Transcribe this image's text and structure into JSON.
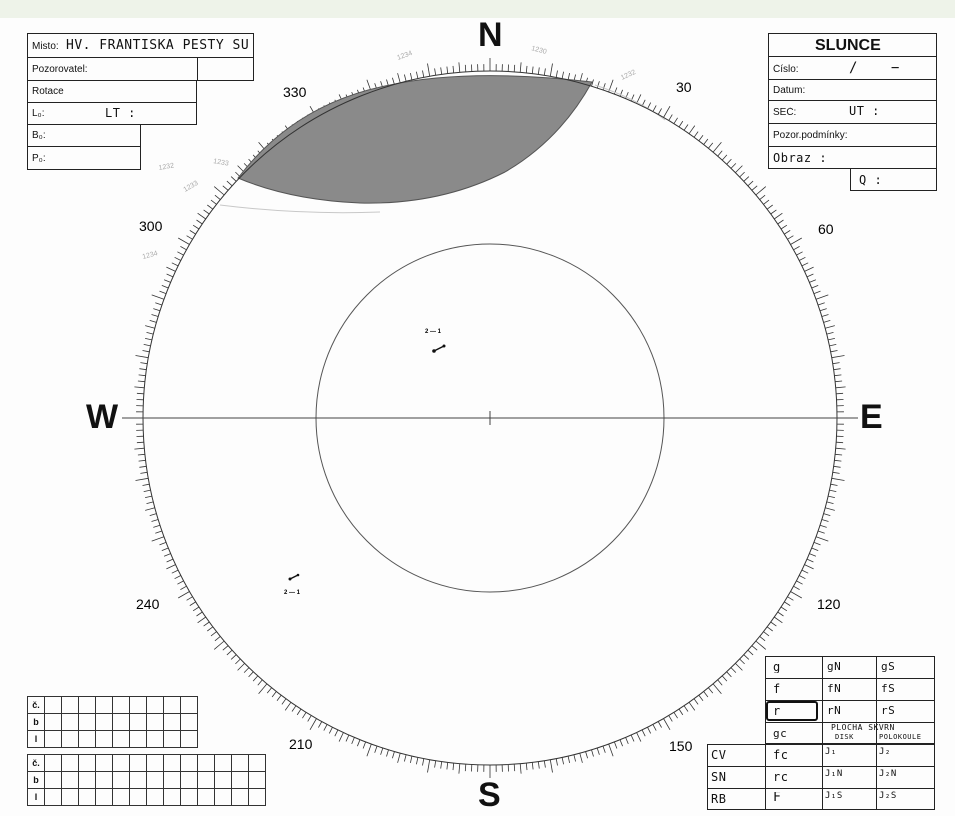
{
  "observation_form": {
    "misto_label": "Misto:",
    "misto_value": "HV. FRANTIŠKA PEŠTY SÚ",
    "pozorovatel_label": "Pozorovatel:",
    "rotace_label": "Rotace",
    "l0_label": "L₀:",
    "lt_label": "LT :",
    "b0_label": "B₀:",
    "p_label": "P₀:"
  },
  "slunce_form": {
    "title": "SLUNCE",
    "cislo_label": "Číslo:",
    "cislo_value": "/",
    "cislo_value2": "−",
    "datum_label": "Datum:",
    "sec_label": "SEČ:",
    "ut_label": "UT :",
    "pozor_label": "Pozor.podmínky:",
    "obraz_label": "Obraz :",
    "q_label": "Q :"
  },
  "dial": {
    "n": "N",
    "s": "S",
    "w": "W",
    "e": "E",
    "labels": [
      "330",
      "30",
      "300",
      "60",
      "240",
      "120",
      "210",
      "150"
    ],
    "group_label_1": "2 — 1",
    "group_label_2": "2 — 1"
  },
  "bottom_right_table": {
    "r1": [
      "g",
      "gN",
      "gS"
    ],
    "r2": [
      "f",
      "fN",
      "fS"
    ],
    "r3": [
      "r",
      "rN",
      "rS"
    ],
    "r4a": "gc",
    "plocha_header": "PLOCHA SKVRN",
    "disk_label": "DISK",
    "polokoule_label": "POLOKOULE",
    "rows": [
      {
        "k": "CV",
        "v": "fc",
        "j": "J₁",
        "j2": "J₂"
      },
      {
        "k": "SN",
        "v": "rc",
        "j": "J₁N",
        "j2": "J₂N"
      },
      {
        "k": "RB",
        "v": "F",
        "j": "J₁S",
        "j2": "J₂S"
      }
    ]
  },
  "bottom_left_grid": {
    "row_labels": [
      "č.",
      "b",
      "l",
      "č.",
      "b",
      "l"
    ]
  },
  "pencil_notes": [
    "1234",
    "1230",
    "1232",
    "1232",
    "1233",
    "1233",
    "1234"
  ]
}
